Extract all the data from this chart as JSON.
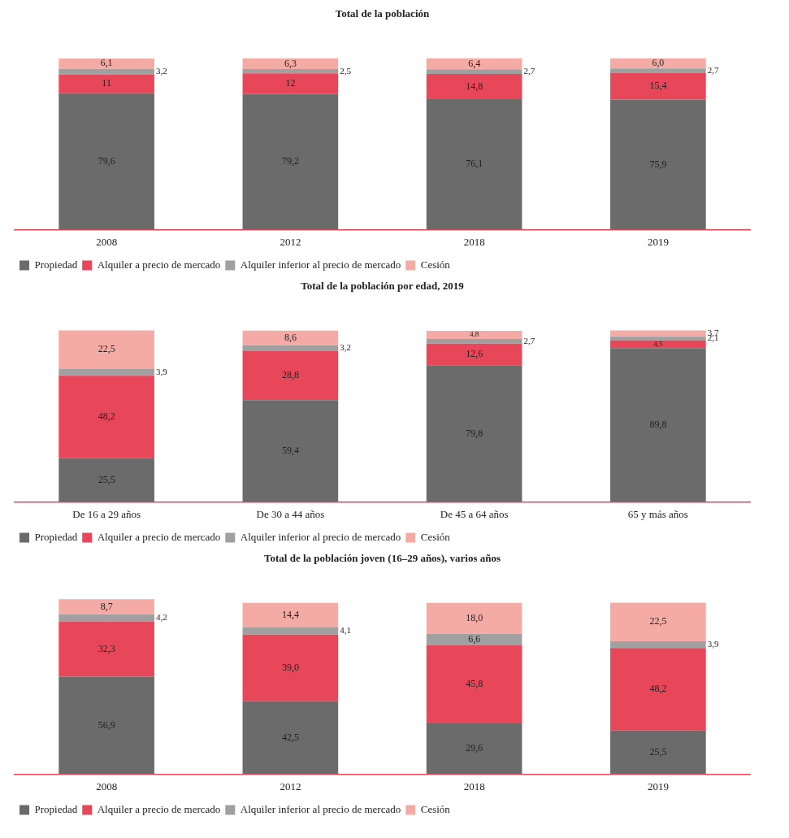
{
  "chart_data": [
    {
      "type": "bar",
      "title": "Total de la población",
      "categories": [
        "2008",
        "2012",
        "2018",
        "2019"
      ],
      "stacked": true,
      "tick_labels": "x",
      "grid": false,
      "legend": "bottom",
      "series": [
        {
          "name": "Propiedad",
          "color": "#6b6b6b",
          "values": [
            79.6,
            79.2,
            76.1,
            75.9
          ],
          "value_labels": [
            "79,6",
            "79,2",
            "76,1",
            "75,9"
          ]
        },
        {
          "name": "Alquiler a precio de mercado",
          "color": "#e8475a",
          "values": [
            11,
            12,
            14.8,
            15.4
          ],
          "value_labels": [
            "11",
            "12",
            "14,8",
            "15,4"
          ]
        },
        {
          "name": "Alquiler inferior al precio de mercado",
          "color": "#a0a0a0",
          "values": [
            3.2,
            2.5,
            2.7,
            2.7
          ],
          "value_labels": [
            "3,2",
            "2,5",
            "2,7",
            "2,7"
          ]
        },
        {
          "name": "Cesión",
          "color": "#f4aaa5",
          "values": [
            6.1,
            6.3,
            6.4,
            6.0
          ],
          "value_labels": [
            "6,1",
            "6,3",
            "6,4",
            "6,0"
          ]
        }
      ]
    },
    {
      "type": "bar",
      "title": "Total de la población por edad, 2019",
      "categories": [
        "De 16 a 29 años",
        "De 30 a 44 años",
        "De 45 a 64 años",
        "65 y más años"
      ],
      "stacked": true,
      "tick_labels": "x",
      "grid": false,
      "legend": "bottom",
      "series": [
        {
          "name": "Propiedad",
          "color": "#6b6b6b",
          "values": [
            25.5,
            59.4,
            79.8,
            89.8
          ],
          "value_labels": [
            "25,5",
            "59,4",
            "79,8",
            "89,8"
          ]
        },
        {
          "name": "Alquiler a precio de mercado",
          "color": "#e8475a",
          "values": [
            48.2,
            28.8,
            12.6,
            4.5
          ],
          "value_labels": [
            "48,2",
            "28,8",
            "12,6",
            "4,5"
          ]
        },
        {
          "name": "Alquiler inferior al precio de mercado",
          "color": "#a0a0a0",
          "values": [
            3.9,
            3.2,
            2.7,
            2.1
          ],
          "value_labels": [
            "3,9",
            "3,2",
            "2,7",
            "2,1"
          ]
        },
        {
          "name": "Cesión",
          "color": "#f4aaa5",
          "values": [
            22.5,
            8.6,
            4.8,
            3.7
          ],
          "value_labels": [
            "22,5",
            "8,6",
            "4,8",
            "3,7"
          ]
        }
      ]
    },
    {
      "type": "bar",
      "title": "Total de la población joven (16–29 años), varios años",
      "categories": [
        "2008",
        "2012",
        "2018",
        "2019"
      ],
      "stacked": true,
      "tick_labels": "x",
      "grid": false,
      "legend": "bottom",
      "series": [
        {
          "name": "Propiedad",
          "color": "#6b6b6b",
          "values": [
            56.9,
            42.5,
            29.6,
            25.5
          ],
          "value_labels": [
            "56,9",
            "42,5",
            "29,6",
            "25,5"
          ]
        },
        {
          "name": "Alquiler a precio de mercado",
          "color": "#e8475a",
          "values": [
            32.3,
            39.0,
            45.8,
            48.2
          ],
          "value_labels": [
            "32,3",
            "39,0",
            "45,8",
            "48,2"
          ]
        },
        {
          "name": "Alquiler inferior al precio de mercado",
          "color": "#a0a0a0",
          "values": [
            4.2,
            4.1,
            6.6,
            3.9
          ],
          "value_labels": [
            "4,2",
            "4,1",
            "6,6",
            "3,9"
          ]
        },
        {
          "name": "Cesión",
          "color": "#f4aaa5",
          "values": [
            8.7,
            14.4,
            18.0,
            22.5
          ],
          "value_labels": [
            "8,7",
            "14,4",
            "18,0",
            "22,5"
          ]
        }
      ]
    }
  ]
}
